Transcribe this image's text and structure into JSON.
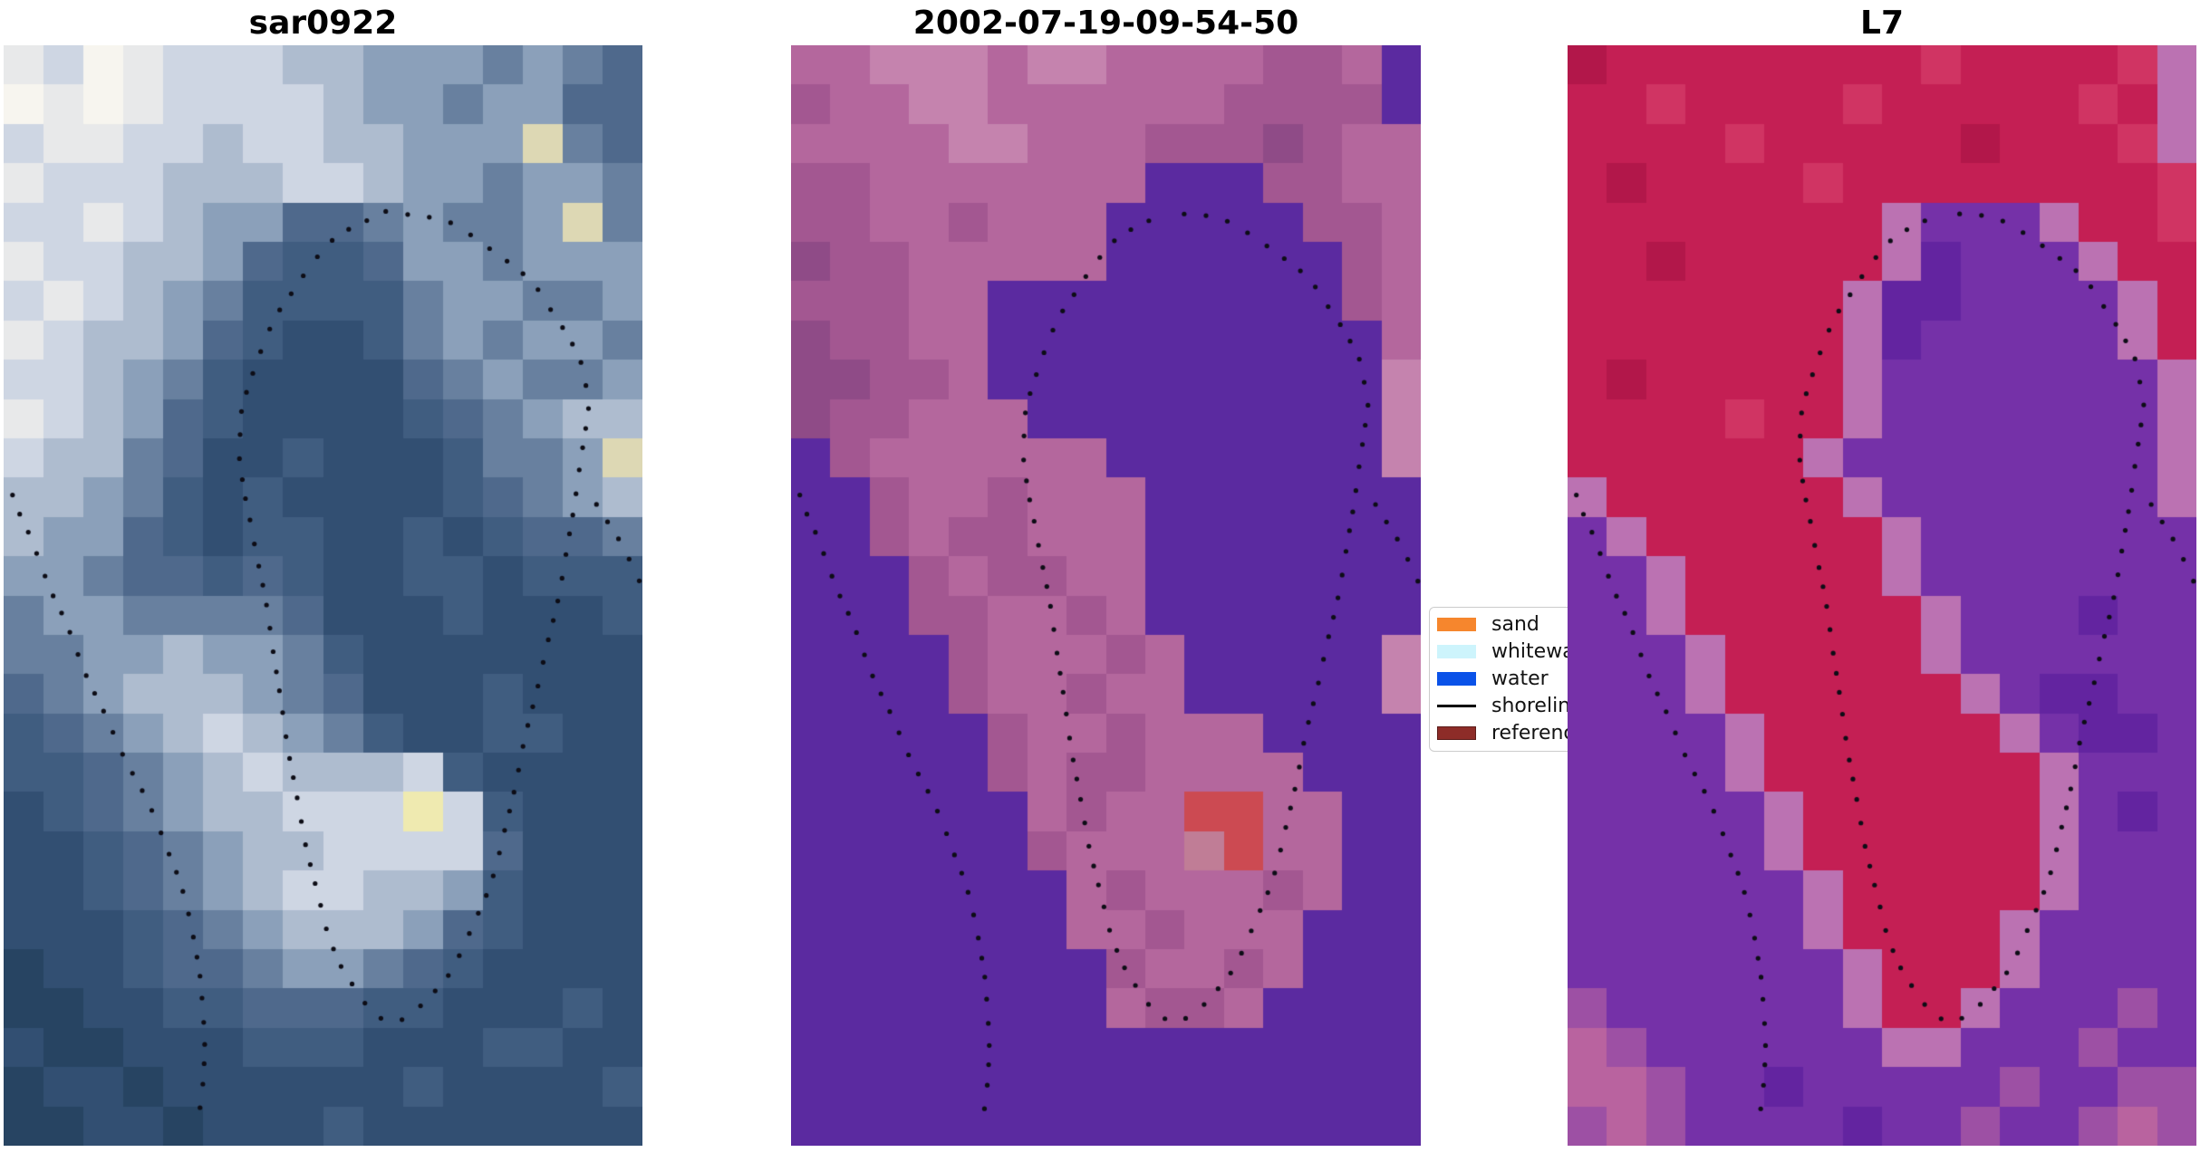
{
  "figure": {
    "background": "#ffffff"
  },
  "panels": [
    {
      "id": "sar0922",
      "title": "sar0922",
      "palette": {
        "0": "#f7f5ef",
        "1": "#e8e9ea",
        "2": "#ced6e3",
        "3": "#aebccf",
        "4": "#8ba0ba",
        "5": "#68809f",
        "6": "#4f698c",
        "7": "#405d80",
        "8": "#324f72",
        "9": "#274462",
        "y": "#efeab0",
        "c": "#ddd8b4"
      },
      "grid": [
        "1201222334445456",
        "0101222234454466",
        "2112232233444c56",
        "1222333223445445",
        "22123446654554c5",
        "1223346776445444",
        "2123457777544554",
        "1233467887545445",
        "2234578888654554",
        "1234678888765433",
        "233568878887554c",
        "3345787888876543",
        "3446787788787665",
        "4456676788778777",
        "5445555688878887",
        "5544344578888888",
        "6543334568887888",
        "7654323457887788",
        "7765432333278888",
        "8765433222y27888",
        "8876543322226888",
        "8876543223347888",
        "8887654333467888",
        "9887665445678888",
        "9988776667788878",
        "8998887778887788",
        "9889888888788887",
        "9988988878888888"
      ]
    },
    {
      "id": "classified",
      "title": "2002-07-19-09-54-50",
      "palette": {
        "p": "#5b2aa0",
        "a": "#c583ae",
        "b": "#b4679d",
        "c": "#a35791",
        "d": "#8f4b87",
        "r": "#cc4a52",
        "q": "#c07d96"
      },
      "grid": [
        "bbaaabaabbbbccbp",
        "cbbaabbbbbbccccp",
        "bbbbaabbbcccdcbb",
        "ccbbbbbbbpppccbb",
        "ccbbcbbbpppppccb",
        "dccbbbbbppppppcb",
        "cccbbpppppppppcb",
        "dccbbppppppppppb",
        "ddccbppppppppppa",
        "dccbbbpppppppppa",
        "pcbbbbbbpppppppa",
        "ppcbbcbbbppppppp",
        "ppcbccbbbppppppp",
        "pppcbccbbppppppp",
        "pppccbbcbppppppp",
        "ppppcbbbcbpppppa",
        "ppppcbbcbbpppppa",
        "pppppcbbcbbbpppp",
        "pppppcbccbbbbppp",
        "ppppppbcbbrrbbpp",
        "ppppppcbbbqrbbpp",
        "pppppppbcbbbcbpp",
        "pppppppbbcbbbppp",
        "ppppppppcbbcbppp",
        "ppppppppbccbpppp",
        "pppppppppppppppp",
        "pppppppppppppppp",
        "pppppppppppppppp"
      ]
    },
    {
      "id": "l7",
      "title": "L7",
      "palette": {
        "R": "#c41f54",
        "S": "#d03463",
        "T": "#b2174a",
        "L": "#bb72b2",
        "v": "#7531a8",
        "u": "#6324a0",
        "m": "#9d50a4",
        "M": "#b9639f"
      },
      "grid": [
        "TRRRRRRRRSRRRRSL",
        "RRSRRRRSRRRRRSRL",
        "RRRRSRRRRRTRRRSL",
        "RTRRRRSRRRRRRRRS",
        "RRRRRRRRLvvvLRRS",
        "RRTRRRRRLuvvvLRR",
        "RRRRRRRLuuvvvvLR",
        "RRRRRRRLuvvvvvLR",
        "RTRRRRRLvvvvvvvL",
        "RRRRSRRLvvvvvvvL",
        "RRRRRRLvvvvvvvvL",
        "LRRRRRRLvvvvvvvL",
        "vLRRRRRRLvvvvvvv",
        "vvLRRRRRLvvvvvvv",
        "vvLRRRRRRLvvvuvv",
        "vvvLRRRRRLvvvvvv",
        "vvvLRRRRRRLvuuvv",
        "vvvvLRRRRRRLvuuv",
        "vvvvLRRRRRRRLvvv",
        "vvvvvLRRRRRRLvuv",
        "vvvvvLRRRRRRLvvv",
        "vvvvvvLRRRRRLvvv",
        "vvvvvvLRRRRLvvvv",
        "vvvvvvvLRRRLvvvv",
        "mvvvvvvLRRLvvvmv",
        "MmvvvvvvLLvvvmvv",
        "MMmvvuvvvvvmvvmm",
        "mMmvvvvuvvmvvmMm"
      ]
    }
  ],
  "shoreline": {
    "dot_color": "#0d0d16",
    "dot_radius": 2.6,
    "dot_spacing": 24,
    "contours": [
      {
        "name": "main-ring",
        "closed": true,
        "points": [
          [
            0.6,
            0.15
          ],
          [
            0.55,
            0.162
          ],
          [
            0.503,
            0.183
          ],
          [
            0.46,
            0.212
          ],
          [
            0.424,
            0.248
          ],
          [
            0.396,
            0.288
          ],
          [
            0.376,
            0.33
          ],
          [
            0.371,
            0.372
          ],
          [
            0.378,
            0.412
          ],
          [
            0.39,
            0.452
          ],
          [
            0.403,
            0.492
          ],
          [
            0.416,
            0.532
          ],
          [
            0.429,
            0.572
          ],
          [
            0.441,
            0.612
          ],
          [
            0.452,
            0.652
          ],
          [
            0.462,
            0.692
          ],
          [
            0.473,
            0.732
          ],
          [
            0.487,
            0.77
          ],
          [
            0.505,
            0.806
          ],
          [
            0.528,
            0.838
          ],
          [
            0.557,
            0.864
          ],
          [
            0.59,
            0.882
          ],
          [
            0.625,
            0.886
          ],
          [
            0.66,
            0.873
          ],
          [
            0.692,
            0.849
          ],
          [
            0.721,
            0.817
          ],
          [
            0.747,
            0.781
          ],
          [
            0.77,
            0.742
          ],
          [
            0.79,
            0.701
          ],
          [
            0.808,
            0.659
          ],
          [
            0.825,
            0.616
          ],
          [
            0.841,
            0.573
          ],
          [
            0.856,
            0.53
          ],
          [
            0.87,
            0.487
          ],
          [
            0.884,
            0.444
          ],
          [
            0.898,
            0.401
          ],
          [
            0.912,
            0.358
          ],
          [
            0.92,
            0.322
          ],
          [
            0.903,
            0.285
          ],
          [
            0.872,
            0.253
          ],
          [
            0.835,
            0.224
          ],
          [
            0.793,
            0.199
          ],
          [
            0.748,
            0.178
          ],
          [
            0.7,
            0.163
          ],
          [
            0.65,
            0.153
          ]
        ]
      },
      {
        "name": "left-shore-arc",
        "closed": false,
        "points": [
          [
            0.004,
            0.388
          ],
          [
            0.024,
            0.426
          ],
          [
            0.049,
            0.463
          ],
          [
            0.074,
            0.498
          ],
          [
            0.1,
            0.531
          ],
          [
            0.125,
            0.563
          ],
          [
            0.15,
            0.595
          ],
          [
            0.175,
            0.626
          ],
          [
            0.2,
            0.657
          ],
          [
            0.224,
            0.688
          ],
          [
            0.247,
            0.719
          ],
          [
            0.267,
            0.751
          ],
          [
            0.285,
            0.783
          ],
          [
            0.3,
            0.816
          ],
          [
            0.31,
            0.849
          ],
          [
            0.316,
            0.881
          ],
          [
            0.318,
            0.913
          ],
          [
            0.313,
            0.945
          ],
          [
            0.305,
            0.972
          ]
        ]
      },
      {
        "name": "right-edge-arc",
        "closed": false,
        "points": [
          [
            0.912,
            0.398
          ],
          [
            0.936,
            0.424
          ],
          [
            0.96,
            0.45
          ],
          [
            0.981,
            0.473
          ],
          [
            0.999,
            0.493
          ]
        ]
      }
    ]
  },
  "legend": {
    "items": [
      {
        "label": "sand",
        "type": "patch",
        "swatch_color": "#f6862d"
      },
      {
        "label": "whitewater",
        "type": "patch",
        "swatch_color": "#cdf4fc"
      },
      {
        "label": "water",
        "type": "patch",
        "swatch_color": "#0a52e8"
      },
      {
        "label": "shoreline",
        "type": "line",
        "swatch_color": "#000000"
      },
      {
        "label": "reference",
        "type": "patch",
        "swatch_color": "#8d2c28"
      }
    ]
  },
  "chart_data": {
    "type": "heatmap",
    "description": "Three-panel coastal remote-sensing comparison: SAR backscatter image, classified optical image dated 2002-07-19-09-54-50, and Landsat-7 (L7) image; dotted black shoreline contours overlaid on all panels; classification legend with sand, whitewater, water, shoreline, reference.",
    "panel_titles": [
      "sar0922",
      "2002-07-19-09-54-50",
      "L7"
    ],
    "legend_entries": [
      "sand",
      "whitewater",
      "water",
      "shoreline",
      "reference"
    ]
  }
}
